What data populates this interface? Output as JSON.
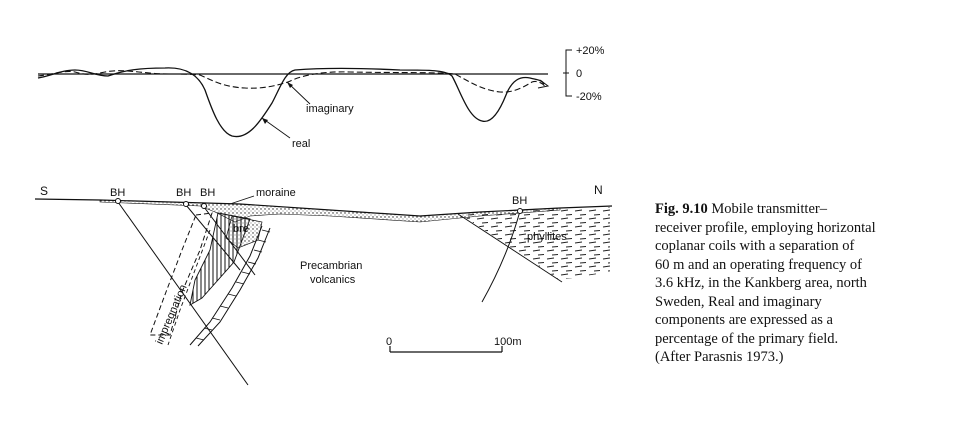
{
  "profile": {
    "scale_labels": {
      "top": "+20%",
      "zero": "0",
      "bottom": "-20%"
    },
    "curve_labels": {
      "imaginary": "imaginary",
      "real": "real"
    }
  },
  "section": {
    "ends": {
      "south": "S",
      "north": "N"
    },
    "boreholes": [
      "BH",
      "BH",
      "BH",
      "BH"
    ],
    "units": {
      "moraine": "moraine",
      "breccia": "bre",
      "phyllites": "phyllites",
      "volcanics_line1": "Precambrian",
      "volcanics_line2": "volcanics",
      "impregnation": "impregnation"
    },
    "scale_bar": {
      "start": "0",
      "end": "100m"
    }
  },
  "caption": {
    "fig_label": "Fig. 9.10",
    "lines": [
      "Mobile transmitter–",
      "receiver profile, employing horizontal",
      "coplanar coils with a separation of",
      "60 m and an operating frequency of",
      "3.6 kHz, in the Kankberg area, north",
      "Sweden, Real and imaginary",
      "components are expressed as a",
      "percentage of the primary field.",
      "(After Parasnis 1973.)"
    ]
  }
}
